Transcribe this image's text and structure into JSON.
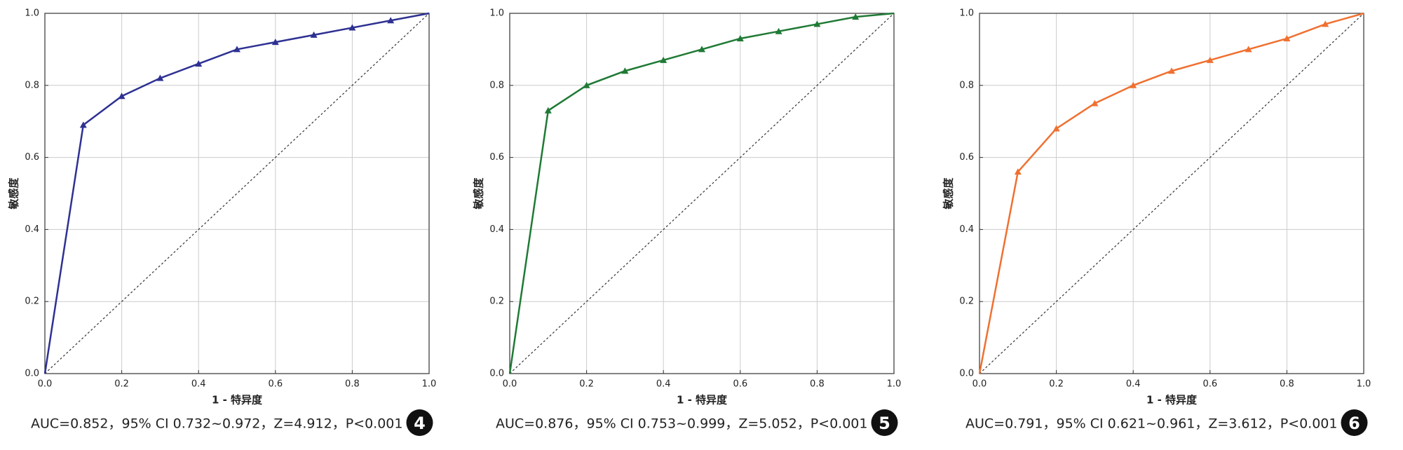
{
  "chart_data": [
    {
      "type": "line",
      "xlabel": "1 - 特异度",
      "ylabel": "敏感度",
      "x": [
        0,
        0.1,
        0.2,
        0.3,
        0.4,
        0.5,
        0.6,
        0.7,
        0.8,
        0.9,
        1.0
      ],
      "series": [
        {
          "color": "#2e3192",
          "values": [
            0,
            0.69,
            0.77,
            0.82,
            0.86,
            0.9,
            0.92,
            0.94,
            0.96,
            0.98,
            1.0
          ]
        }
      ],
      "xlim": [
        0,
        1
      ],
      "ylim": [
        0,
        1
      ],
      "xticks": [
        {
          "value": 0,
          "label": "0.0"
        },
        0.2,
        0.4,
        0.6,
        0.8,
        {
          "value": 1,
          "label": "1.0"
        }
      ],
      "yticks": [
        {
          "value": 0,
          "label": "0.0"
        },
        0.2,
        0.4,
        0.6,
        0.8,
        {
          "value": 1,
          "label": "1.0"
        }
      ],
      "grid": true,
      "caption": "AUC=0.852，95% CI 0.732~0.972，Z=4.912，P<0.001",
      "panel": "4"
    },
    {
      "type": "line",
      "xlabel": "1 - 特异度",
      "ylabel": "敏感度",
      "x": [
        0,
        0.1,
        0.2,
        0.3,
        0.4,
        0.5,
        0.6,
        0.7,
        0.8,
        0.9,
        1.0
      ],
      "series": [
        {
          "color": "#1f7a35",
          "values": [
            0,
            0.73,
            0.8,
            0.84,
            0.87,
            0.9,
            0.93,
            0.95,
            0.97,
            0.99,
            1.0
          ]
        }
      ],
      "xlim": [
        0,
        1
      ],
      "ylim": [
        0,
        1
      ],
      "xticks": [
        {
          "value": 0,
          "label": "0.0"
        },
        0.2,
        0.4,
        0.6,
        0.8,
        {
          "value": 1,
          "label": "1.0"
        }
      ],
      "yticks": [
        {
          "value": 0,
          "label": "0.0"
        },
        0.2,
        0.4,
        0.6,
        0.8,
        {
          "value": 1,
          "label": "1.0"
        }
      ],
      "grid": true,
      "caption": "AUC=0.876，95% CI 0.753~0.999，Z=5.052，P<0.001",
      "panel": "5"
    },
    {
      "type": "line",
      "xlabel": "1 - 特异度",
      "ylabel": "敏感度",
      "x": [
        0,
        0.1,
        0.2,
        0.3,
        0.4,
        0.5,
        0.6,
        0.7,
        0.8,
        0.9,
        1.0
      ],
      "series": [
        {
          "color": "#f07030",
          "values": [
            0,
            0.56,
            0.68,
            0.75,
            0.8,
            0.84,
            0.87,
            0.9,
            0.93,
            0.97,
            1.0
          ]
        }
      ],
      "xlim": [
        0,
        1
      ],
      "ylim": [
        0,
        1
      ],
      "xticks": [
        {
          "value": 0,
          "label": "0.0"
        },
        0.2,
        0.4,
        0.6,
        0.8,
        {
          "value": 1,
          "label": "1.0"
        }
      ],
      "yticks": [
        {
          "value": 0,
          "label": "0.0"
        },
        0.2,
        0.4,
        0.6,
        0.8,
        {
          "value": 1,
          "label": "1.0"
        }
      ],
      "grid": true,
      "caption": "AUC=0.791，95% CI 0.621~0.961，Z=3.612，P<0.001",
      "panel": "6"
    }
  ]
}
